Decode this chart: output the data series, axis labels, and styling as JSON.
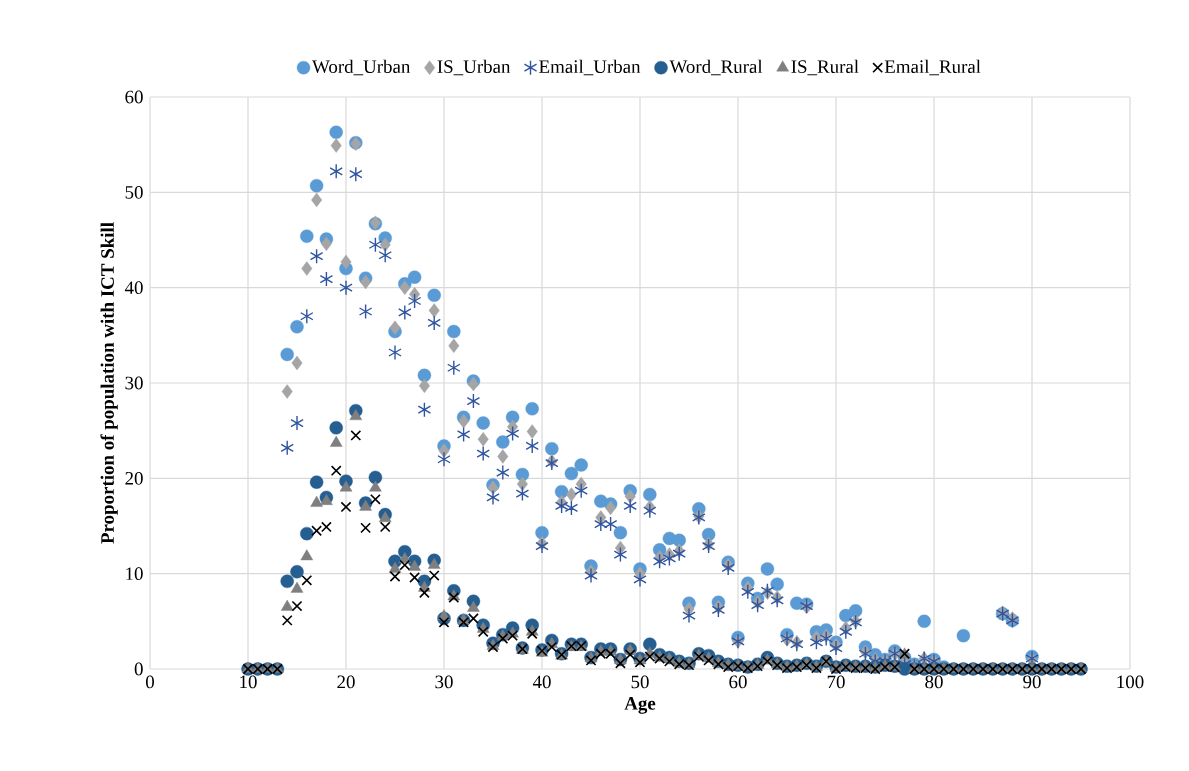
{
  "chart_data": {
    "type": "scatter",
    "xlabel": "Age",
    "ylabel": "Proportion of population with ICT Skill",
    "xlim": [
      0,
      100
    ],
    "xticks": [
      0,
      10,
      20,
      30,
      40,
      50,
      60,
      70,
      80,
      90,
      100
    ],
    "ylim": [
      0,
      60
    ],
    "yticks": [
      0,
      10,
      20,
      30,
      40,
      50,
      60
    ],
    "grid": true,
    "legend": "top",
    "x": [
      10,
      11,
      12,
      13,
      14,
      15,
      16,
      17,
      18,
      19,
      20,
      21,
      22,
      23,
      24,
      25,
      26,
      27,
      28,
      29,
      30,
      31,
      32,
      33,
      34,
      35,
      36,
      37,
      38,
      39,
      40,
      41,
      42,
      43,
      44,
      45,
      46,
      47,
      48,
      49,
      50,
      51,
      52,
      53,
      54,
      55,
      56,
      57,
      58,
      59,
      60,
      61,
      62,
      63,
      64,
      65,
      66,
      67,
      68,
      69,
      70,
      71,
      72,
      73,
      74,
      75,
      76,
      77,
      78,
      79,
      80,
      81,
      82,
      83,
      84,
      85,
      86,
      87,
      88,
      89,
      90,
      91,
      92,
      93,
      94,
      95
    ],
    "series": [
      {
        "name": "Word_Urban",
        "color": "#5b9bd5",
        "marker": "circle",
        "values": [
          null,
          null,
          null,
          null,
          33.0,
          35.9,
          45.4,
          50.7,
          45.1,
          56.3,
          42.0,
          55.2,
          41.0,
          46.7,
          45.2,
          35.4,
          40.4,
          41.1,
          30.8,
          39.2,
          23.4,
          35.4,
          26.4,
          30.2,
          25.8,
          19.3,
          23.8,
          26.4,
          20.4,
          27.3,
          14.3,
          23.1,
          18.6,
          20.5,
          21.4,
          10.8,
          17.6,
          17.3,
          14.3,
          18.7,
          10.5,
          18.3,
          12.5,
          13.7,
          13.5,
          6.9,
          16.8,
          14.1,
          7.0,
          11.2,
          3.3,
          9.0,
          7.4,
          10.5,
          8.9,
          3.6,
          6.9,
          6.8,
          3.9,
          4.1,
          2.8,
          5.6,
          6.1,
          2.3,
          1.5,
          1.0,
          1.9,
          1.2,
          0.5,
          5.0,
          1.0,
          0.2,
          null,
          3.5,
          null,
          null,
          null,
          5.8,
          5.1,
          null,
          1.3,
          null,
          null,
          null,
          null,
          null
        ]
      },
      {
        "name": "IS_Urban",
        "color": "#a5a5a5",
        "marker": "diamond",
        "values": [
          null,
          null,
          null,
          null,
          29.1,
          32.1,
          42.0,
          49.2,
          44.6,
          54.9,
          42.7,
          55.1,
          40.6,
          46.8,
          44.5,
          35.8,
          40.0,
          39.3,
          29.7,
          37.6,
          22.9,
          33.9,
          26.0,
          29.9,
          24.1,
          19.0,
          22.3,
          25.4,
          19.4,
          24.9,
          13.2,
          21.8,
          17.5,
          18.3,
          19.4,
          10.2,
          15.9,
          16.9,
          12.7,
          18.1,
          10.0,
          17.0,
          11.7,
          12.0,
          12.4,
          6.3,
          16.0,
          13.1,
          6.5,
          10.9,
          2.9,
          8.5,
          7.0,
          8.0,
          7.5,
          3.1,
          2.8,
          6.5,
          3.3,
          3.5,
          2.5,
          4.3,
          5.0,
          1.8,
          1.0,
          0.9,
          1.6,
          0.7,
          0.3,
          1.1,
          0.8,
          null,
          null,
          null,
          null,
          null,
          null,
          5.9,
          5.3,
          null,
          1.0,
          null,
          null,
          null,
          null,
          null
        ]
      },
      {
        "name": "Email_Urban",
        "color": "#2f55a0",
        "values": [
          null,
          null,
          null,
          null,
          23.2,
          25.8,
          37.0,
          43.3,
          40.9,
          52.2,
          40.0,
          51.9,
          37.5,
          44.5,
          43.4,
          33.2,
          37.4,
          38.6,
          27.2,
          36.3,
          22.0,
          31.6,
          24.6,
          28.1,
          22.6,
          18.0,
          20.6,
          24.7,
          18.4,
          23.4,
          12.9,
          21.6,
          17.1,
          16.9,
          18.7,
          9.8,
          15.2,
          15.2,
          12.0,
          17.1,
          9.4,
          16.6,
          11.3,
          11.6,
          12.1,
          5.6,
          15.9,
          12.9,
          6.2,
          10.6,
          2.9,
          8.1,
          6.7,
          8.2,
          7.2,
          3.2,
          2.6,
          6.6,
          2.8,
          3.2,
          2.2,
          3.9,
          4.9,
          1.6,
          0.8,
          0.8,
          1.6,
          0.5,
          0.3,
          1.1,
          0.8,
          null,
          null,
          null,
          null,
          null,
          null,
          5.8,
          5.1,
          null,
          1.1,
          null,
          null,
          null,
          null,
          null
        ]
      },
      {
        "name": "Word_Rural",
        "color": "#255e91",
        "marker": "circle",
        "values": [
          0,
          0,
          0,
          0,
          9.2,
          10.2,
          14.2,
          19.6,
          18.0,
          25.3,
          19.7,
          27.1,
          17.4,
          20.1,
          16.2,
          11.3,
          12.3,
          11.3,
          9.2,
          11.4,
          5.3,
          8.2,
          5.1,
          7.1,
          4.6,
          2.7,
          3.6,
          4.3,
          2.2,
          4.6,
          2.0,
          3.0,
          1.6,
          2.6,
          2.6,
          1.2,
          2.1,
          2.1,
          1.0,
          2.1,
          1.1,
          2.6,
          1.5,
          1.2,
          0.8,
          0.6,
          1.6,
          1.4,
          0.8,
          0.5,
          0.4,
          0.2,
          0.5,
          1.2,
          0.6,
          0.3,
          0.4,
          0.6,
          0.3,
          0.8,
          0.2,
          0.4,
          0.3,
          0.3,
          0.2,
          0.4,
          0.3,
          0,
          0,
          0,
          0,
          0,
          0,
          0,
          0,
          0,
          0,
          0,
          0,
          0,
          0,
          0,
          0,
          0,
          0,
          0
        ]
      },
      {
        "name": "IS_Rural",
        "color": "#7f7f7f",
        "marker": "triangle",
        "values": [
          0,
          0,
          0,
          0,
          6.5,
          8.4,
          11.8,
          17.4,
          17.6,
          23.7,
          19.0,
          26.5,
          17.0,
          19.0,
          15.8,
          10.5,
          11.5,
          10.7,
          8.5,
          10.9,
          5.5,
          7.6,
          5.1,
          6.4,
          4.2,
          2.4,
          3.4,
          3.7,
          2.0,
          3.9,
          1.7,
          2.6,
          1.4,
          2.3,
          2.3,
          1.1,
          1.8,
          1.8,
          0.9,
          1.9,
          0.9,
          1.6,
          1.2,
          1.0,
          0.6,
          0.5,
          1.4,
          1.1,
          0.6,
          0.4,
          0.3,
          0.2,
          0.4,
          0.9,
          0.5,
          0.2,
          0.3,
          0.5,
          0.2,
          0.7,
          0.1,
          0.3,
          0.2,
          0.2,
          0.1,
          0.3,
          0.2,
          1.5,
          0,
          0,
          0,
          0,
          0,
          0,
          0,
          0,
          0,
          0,
          0,
          0,
          0,
          0,
          0,
          0,
          0,
          0
        ]
      },
      {
        "name": "Email_Rural",
        "color": "#000000",
        "marker": "cross",
        "values": [
          0,
          0,
          0,
          0,
          5.1,
          6.6,
          9.3,
          14.5,
          14.9,
          20.8,
          17.0,
          24.5,
          14.8,
          17.8,
          14.9,
          9.7,
          10.9,
          9.6,
          8.0,
          9.8,
          4.9,
          7.5,
          4.9,
          5.3,
          3.9,
          2.3,
          3.2,
          3.5,
          2.1,
          3.7,
          1.9,
          2.3,
          1.5,
          2.4,
          2.4,
          0.9,
          1.6,
          1.6,
          0.6,
          1.5,
          0.7,
          1.3,
          1.1,
          0.8,
          0.5,
          0.4,
          1.3,
          0.9,
          0.5,
          0.2,
          0.3,
          0.1,
          0.3,
          0.8,
          0.4,
          0.1,
          0.2,
          0.4,
          0.1,
          0.8,
          0,
          0.2,
          0.1,
          0.1,
          0,
          0.2,
          0.2,
          1.6,
          0,
          0,
          0,
          0,
          0,
          0,
          0,
          0,
          0,
          0,
          0,
          0,
          0,
          0,
          0,
          0,
          0,
          0
        ]
      }
    ]
  }
}
